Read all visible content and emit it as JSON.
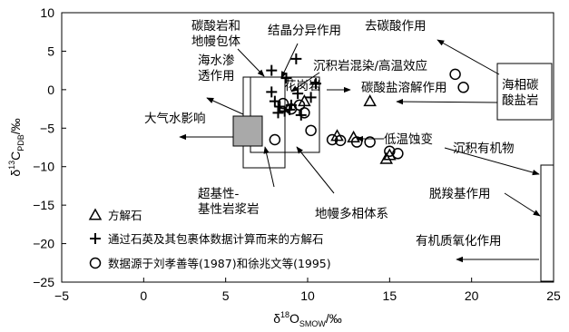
{
  "chart_data": {
    "type": "scatter",
    "xlim": [
      -5,
      25
    ],
    "ylim": [
      -25,
      10
    ],
    "x_ticks": [
      "-5",
      "0",
      "5",
      "10",
      "15",
      "20",
      "25"
    ],
    "y_ticks": [
      "10",
      "5",
      "0",
      "-5",
      "-10",
      "-15",
      "-20",
      "-25"
    ],
    "xlabel": "δ¹⁸O_SMOW/‰",
    "ylabel": "δ¹³C_PDB/‰",
    "grid": false,
    "series": [
      {
        "name": "方解石",
        "marker": "triangle",
        "points": [
          [
            9.8,
            -1.5
          ],
          [
            13.8,
            -1.5
          ],
          [
            11.8,
            -6.0
          ],
          [
            12.8,
            -6.2
          ],
          [
            14.8,
            -9.0
          ],
          [
            15.0,
            -8.5
          ]
        ]
      },
      {
        "name": "通过石英及其包裹体数据计算而来的方解石",
        "marker": "plus",
        "points": [
          [
            7.8,
            2.5
          ],
          [
            8.7,
            1.5
          ],
          [
            9.3,
            4.0
          ],
          [
            10.5,
            0.8
          ],
          [
            7.8,
            -0.3
          ],
          [
            8.0,
            -1.5
          ],
          [
            8.3,
            -2.2
          ],
          [
            8.6,
            -2.8
          ],
          [
            8.2,
            -3.0
          ],
          [
            9.0,
            -2.0
          ],
          [
            9.4,
            -0.5
          ],
          [
            10.2,
            -1.0
          ],
          [
            8.9,
            -2.6
          ],
          [
            9.6,
            -3.3
          ]
        ]
      },
      {
        "name": "数据源于刘孝善等(1987)和徐兆文等(1995)",
        "marker": "circle",
        "points": [
          [
            8.0,
            -6.5
          ],
          [
            8.5,
            -1.8
          ],
          [
            9.0,
            -2.5
          ],
          [
            9.5,
            -2.0
          ],
          [
            9.8,
            -3.0
          ],
          [
            10.2,
            -5.3
          ],
          [
            11.5,
            -6.5
          ],
          [
            12.0,
            -6.6
          ],
          [
            13.0,
            -6.8
          ],
          [
            13.8,
            -6.8
          ],
          [
            15.0,
            -8.0
          ],
          [
            15.5,
            -8.3
          ],
          [
            19.0,
            2.0
          ],
          [
            19.5,
            0.3
          ]
        ]
      }
    ],
    "annotations": {
      "mantle": "碳酸岩和\n地幔包体",
      "crystal": "结晶分异作用",
      "seawater": "海水渗\n透作用",
      "decarbon": "去碳酸作用",
      "contam": "沉积岩混染/高温效应",
      "granite": "花岗岩",
      "dissolve": "碳酸盐溶解作用",
      "marine": "海相碳\n酸盐岩",
      "meteoric": "大气水影响",
      "lowtemp": "低温蚀变",
      "organic": "沉积有机物",
      "ultra": "超基性-\n基性岩浆岩",
      "mantlemulti": "地幔多相体系",
      "decarb": "脱羧基作用",
      "oxid": "有机质氧化作用"
    }
  }
}
